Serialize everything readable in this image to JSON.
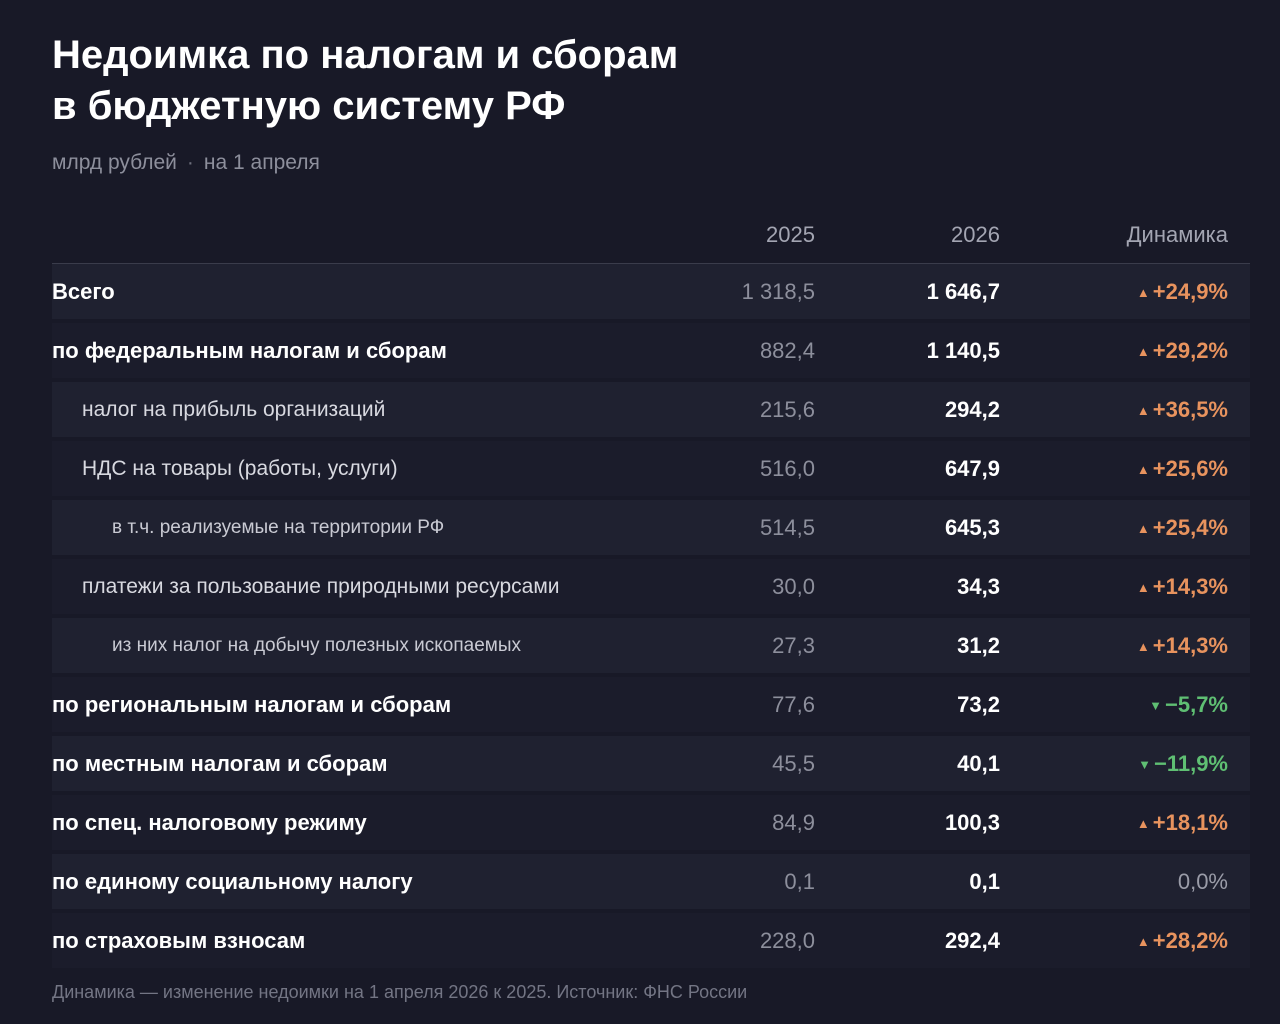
{
  "title_line1": "Недоимка по налогам и сборам",
  "title_line2": "в бюджетную систему РФ",
  "subtitle_unit": "млрд рублей",
  "subtitle_sep": "·",
  "subtitle_date": "на 1 апреля",
  "columns": {
    "y2025": "2025",
    "y2026": "2026",
    "dynamics": "Динамика"
  },
  "rows": [
    {
      "label": "Всего",
      "v2025": "1 318,5",
      "v2026": "1 646,7",
      "arrow": "▲",
      "dyn": "+24,9%"
    },
    {
      "label": "по федеральным налогам и сборам",
      "v2025": "882,4",
      "v2026": "1 140,5",
      "arrow": "▲",
      "dyn": "+29,2%"
    },
    {
      "label": "налог на прибыль организаций",
      "v2025": "215,6",
      "v2026": "294,2",
      "arrow": "▲",
      "dyn": "+36,5%"
    },
    {
      "label": "НДС на товары (работы, услуги)",
      "v2025": "516,0",
      "v2026": "647,9",
      "arrow": "▲",
      "dyn": "+25,6%"
    },
    {
      "label": "в т.ч. реализуемые на территории РФ",
      "v2025": "514,5",
      "v2026": "645,3",
      "arrow": "▲",
      "dyn": "+25,4%"
    },
    {
      "label": "платежи за пользование природными ресурсами",
      "v2025": "30,0",
      "v2026": "34,3",
      "arrow": "▲",
      "dyn": "+14,3%"
    },
    {
      "label": "из них налог на добычу полезных ископаемых",
      "v2025": "27,3",
      "v2026": "31,2",
      "arrow": "▲",
      "dyn": "+14,3%"
    },
    {
      "label": "по региональным налогам и сборам",
      "v2025": "77,6",
      "v2026": "73,2",
      "arrow": "▼",
      "dyn": "−5,7%"
    },
    {
      "label": "по местным налогам и сборам",
      "v2025": "45,5",
      "v2026": "40,1",
      "arrow": "▼",
      "dyn": "−11,9%"
    },
    {
      "label": "по спец. налоговому режиму",
      "v2025": "84,9",
      "v2026": "100,3",
      "arrow": "▲",
      "dyn": "+18,1%"
    },
    {
      "label": "по единому социальному налогу",
      "v2025": "0,1",
      "v2026": "0,1",
      "arrow": "",
      "dyn": "0,0%"
    },
    {
      "label": "по страховым взносам",
      "v2025": "228,0",
      "v2026": "292,4",
      "arrow": "▲",
      "dyn": "+28,2%"
    }
  ],
  "footnote": "Динамика — изменение недоимки на 1 апреля 2026 к 2025.  Источник: ФНС России",
  "colors": {
    "background": "#181927",
    "increase": "#e8935e",
    "decrease": "#5fbf73",
    "neutral": "#9a9ca8"
  }
}
